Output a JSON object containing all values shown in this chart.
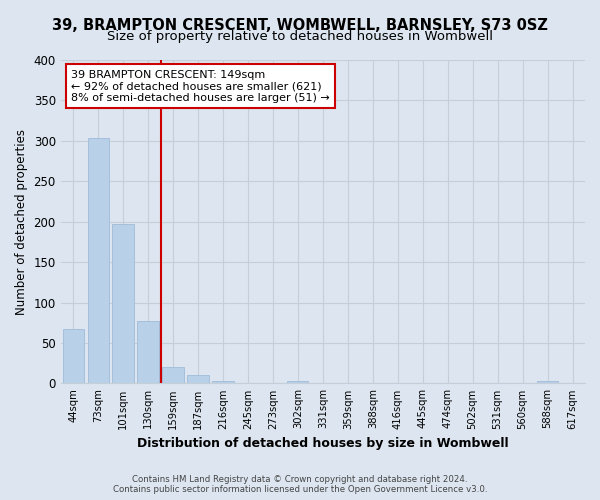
{
  "title1": "39, BRAMPTON CRESCENT, WOMBWELL, BARNSLEY, S73 0SZ",
  "title2": "Size of property relative to detached houses in Wombwell",
  "xlabel": "Distribution of detached houses by size in Wombwell",
  "ylabel": "Number of detached properties",
  "bar_labels": [
    "44sqm",
    "73sqm",
    "101sqm",
    "130sqm",
    "159sqm",
    "187sqm",
    "216sqm",
    "245sqm",
    "273sqm",
    "302sqm",
    "331sqm",
    "359sqm",
    "388sqm",
    "416sqm",
    "445sqm",
    "474sqm",
    "502sqm",
    "531sqm",
    "560sqm",
    "588sqm",
    "617sqm"
  ],
  "bar_values": [
    67,
    303,
    197,
    77,
    20,
    10,
    3,
    0,
    0,
    3,
    0,
    0,
    0,
    0,
    0,
    0,
    0,
    0,
    0,
    3,
    0
  ],
  "bar_color": "#b8d0e8",
  "bar_edge_color": "#a0bcd8",
  "property_line_color": "#cc0000",
  "annotation_title": "39 BRAMPTON CRESCENT: 149sqm",
  "annotation_line1": "← 92% of detached houses are smaller (621)",
  "annotation_line2": "8% of semi-detached houses are larger (51) →",
  "annotation_box_color": "#ffffff",
  "annotation_box_edge": "#cc0000",
  "ylim": [
    0,
    400
  ],
  "yticks": [
    0,
    50,
    100,
    150,
    200,
    250,
    300,
    350,
    400
  ],
  "footer1": "Contains HM Land Registry data © Crown copyright and database right 2024.",
  "footer2": "Contains public sector information licensed under the Open Government Licence v3.0.",
  "bg_color": "#dde6f0",
  "plot_bg_color": "#dde6f0",
  "grid_color": "#c5cfd8",
  "title1_fontsize": 10.5,
  "title2_fontsize": 9.5
}
